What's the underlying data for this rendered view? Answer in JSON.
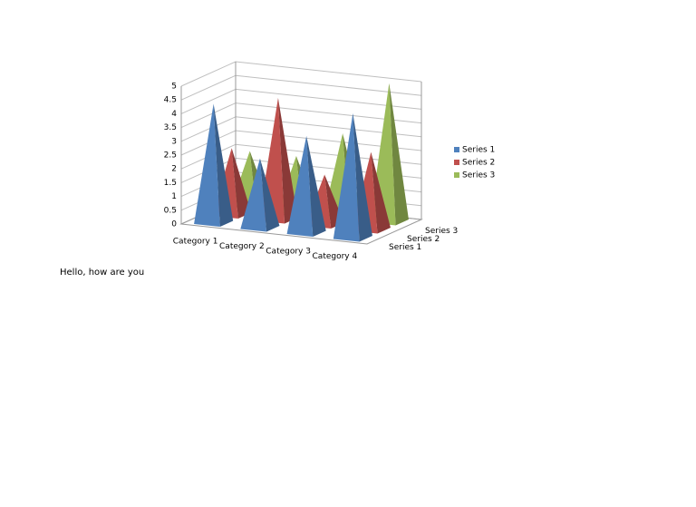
{
  "chart_data": {
    "type": "pyramid3d",
    "categories": [
      "Category 1",
      "Category 2",
      "Category 3",
      "Category 4"
    ],
    "series": [
      {
        "name": "Series 1",
        "color": "#4f81bd",
        "values": [
          4.3,
          2.5,
          3.5,
          4.5
        ]
      },
      {
        "name": "Series 2",
        "color": "#c0504d",
        "values": [
          2.4,
          4.4,
          1.8,
          2.8
        ]
      },
      {
        "name": "Series 3",
        "color": "#9bbb59",
        "values": [
          2,
          2,
          3,
          5
        ]
      }
    ],
    "ylim": [
      0,
      5
    ],
    "yticks": [
      0,
      0.5,
      1,
      1.5,
      2,
      2.5,
      3,
      3.5,
      4,
      4.5,
      5
    ],
    "grid": true,
    "legend": "right"
  },
  "paragraphs": [
    "Hello, how are you"
  ]
}
